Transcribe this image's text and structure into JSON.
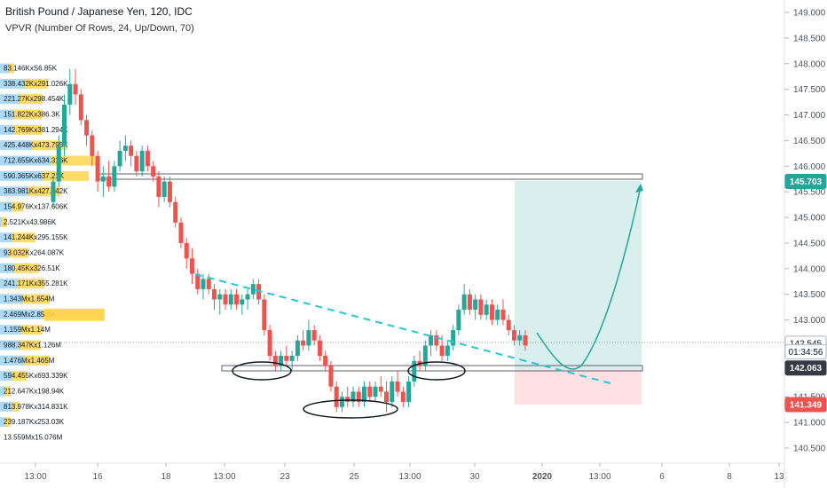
{
  "header": {
    "title": "British Pound / Japanese Yen, 120, IDC",
    "indicator": "VPVR (Number Of Rows, 24, Up/Down, 70)"
  },
  "colors": {
    "up": "#26a69a",
    "down": "#ef5350",
    "vp_up": "#9ed3f5",
    "vp_down": "#ffd54f",
    "target_zone": "#b2dfdb",
    "stop_zone": "#ffcdd2",
    "trendline": "#26c6da",
    "tag_blue": "#2962ff",
    "tag_teal": "#26a69a",
    "tag_dark": "#363a45",
    "tag_red": "#ef5350"
  },
  "chart_data": {
    "type": "candlestick",
    "x_tick_labels": [
      "13:00",
      "16",
      "18",
      "13:00",
      "23",
      "25",
      "13:00",
      "30",
      "2020",
      "13:00",
      "6",
      "8",
      "13"
    ],
    "y_tick_labels": [
      "149.000",
      "148.500",
      "148.000",
      "147.500",
      "147.000",
      "146.500",
      "146.000",
      "145.500",
      "145.000",
      "144.500",
      "144.000",
      "143.500",
      "143.000",
      "142.500",
      "142.000",
      "141.500",
      "141.000",
      "140.500"
    ],
    "ylim": [
      140.3,
      149.1
    ],
    "price_tags": [
      {
        "value": 145.703,
        "label": "145.703",
        "color": "tag_teal"
      },
      {
        "value": 142.545,
        "label": "142.545",
        "color": "tag_white"
      },
      {
        "value": 142.38,
        "label": "01:34:56",
        "color": "tag_white"
      },
      {
        "value": 142.063,
        "label": "142.063",
        "color": "tag_dark"
      },
      {
        "value": 141.349,
        "label": "141.349",
        "color": "tag_red"
      }
    ],
    "volume_profile": [
      {
        "price": 147.9,
        "label": "83.146KxS6.85K",
        "up": 10,
        "down": 6
      },
      {
        "price": 147.6,
        "label": "338.432Kx291.026K",
        "up": 28,
        "down": 26
      },
      {
        "price": 147.3,
        "label": "221.27Kx298.454K",
        "up": 22,
        "down": 26
      },
      {
        "price": 147.0,
        "label": "151.822Kx386.3K",
        "up": 16,
        "down": 32
      },
      {
        "price": 146.7,
        "label": "142.769Kx381.294K",
        "up": 15,
        "down": 32
      },
      {
        "price": 146.4,
        "label": "425.448Kx473.795K",
        "up": 36,
        "down": 40
      },
      {
        "price": 146.1,
        "label": "712.655Kx634.316K",
        "up": 58,
        "down": 52
      },
      {
        "price": 145.8,
        "label": "590.365Kx637.21K",
        "up": 48,
        "down": 52
      },
      {
        "price": 145.5,
        "label": "383.981Kx427.442K",
        "up": 32,
        "down": 36
      },
      {
        "price": 145.2,
        "label": "154.976Kx137.606K",
        "up": 14,
        "down": 12
      },
      {
        "price": 144.9,
        "label": "2.521Kx43.986K",
        "up": 2,
        "down": 6
      },
      {
        "price": 144.6,
        "label": "141.244Kx295.155K",
        "up": 14,
        "down": 26
      },
      {
        "price": 144.3,
        "label": "93.032Kx264.087K",
        "up": 10,
        "down": 22
      },
      {
        "price": 144.0,
        "label": "180.45Kx326.51K",
        "up": 16,
        "down": 28
      },
      {
        "price": 143.7,
        "label": "241.171Kx355.281K",
        "up": 20,
        "down": 30
      },
      {
        "price": 143.4,
        "label": "1.343Mx1.654M",
        "up": 26,
        "down": 30
      },
      {
        "price": 143.1,
        "label": "2.469Mx2.854M",
        "up": 48,
        "down": 68
      },
      {
        "price": 142.8,
        "label": "1.159Mx1.14M",
        "up": 24,
        "down": 24
      },
      {
        "price": 142.5,
        "label": "988.347Kx1.126M",
        "up": 22,
        "down": 24
      },
      {
        "price": 142.2,
        "label": "1.476Mx1.465M",
        "up": 28,
        "down": 28
      },
      {
        "price": 141.9,
        "label": "594.455Kx693.339K",
        "up": 14,
        "down": 16
      },
      {
        "price": 141.6,
        "label": "212.647Kx198.94K",
        "up": 6,
        "down": 6
      },
      {
        "price": 141.3,
        "label": "813.978Kx314.831K",
        "up": 14,
        "down": 8
      },
      {
        "price": 141.0,
        "label": "239.187Kx253.03K",
        "up": 6,
        "down": 6
      },
      {
        "price": 140.7,
        "label": "13.559Mx15.076M",
        "up": 0,
        "down": 0
      }
    ],
    "candles": [
      [
        145.3,
        145.8,
        145.2,
        145.7
      ],
      [
        145.7,
        146.6,
        145.6,
        146.4
      ],
      [
        146.4,
        147.4,
        146.2,
        147.2
      ],
      [
        147.2,
        147.9,
        147.0,
        147.6
      ],
      [
        147.6,
        147.9,
        147.2,
        147.4
      ],
      [
        147.4,
        147.5,
        146.8,
        146.9
      ],
      [
        146.9,
        147.0,
        146.4,
        146.6
      ],
      [
        146.6,
        146.7,
        146.0,
        146.2
      ],
      [
        146.2,
        146.3,
        145.5,
        145.7
      ],
      [
        145.7,
        146.0,
        145.4,
        145.8
      ],
      [
        145.8,
        146.1,
        145.5,
        145.6
      ],
      [
        145.6,
        146.1,
        145.5,
        146.0
      ],
      [
        146.0,
        146.5,
        145.9,
        146.3
      ],
      [
        146.3,
        146.6,
        146.1,
        146.4
      ],
      [
        146.4,
        146.5,
        146.0,
        146.2
      ],
      [
        146.2,
        146.3,
        145.8,
        145.9
      ],
      [
        145.9,
        146.4,
        145.8,
        146.3
      ],
      [
        146.3,
        146.4,
        145.9,
        146.0
      ],
      [
        146.0,
        146.1,
        145.7,
        145.8
      ],
      [
        145.8,
        145.9,
        145.2,
        145.4
      ],
      [
        145.4,
        145.8,
        145.3,
        145.7
      ],
      [
        145.7,
        145.8,
        145.2,
        145.3
      ],
      [
        145.3,
        145.4,
        144.8,
        144.9
      ],
      [
        144.9,
        145.0,
        144.4,
        144.5
      ],
      [
        144.5,
        144.6,
        144.0,
        144.2
      ],
      [
        144.2,
        144.4,
        143.7,
        143.9
      ],
      [
        143.9,
        144.0,
        143.5,
        143.6
      ],
      [
        143.6,
        143.9,
        143.4,
        143.8
      ],
      [
        143.8,
        143.9,
        143.5,
        143.6
      ],
      [
        143.6,
        143.7,
        143.2,
        143.4
      ],
      [
        143.4,
        143.6,
        143.1,
        143.5
      ],
      [
        143.5,
        143.6,
        143.2,
        143.3
      ],
      [
        143.3,
        143.6,
        143.2,
        143.5
      ],
      [
        143.5,
        143.6,
        143.2,
        143.3
      ],
      [
        143.3,
        143.5,
        143.1,
        143.4
      ],
      [
        143.4,
        143.6,
        143.2,
        143.5
      ],
      [
        143.5,
        143.8,
        143.4,
        143.7
      ],
      [
        143.7,
        143.8,
        143.3,
        143.4
      ],
      [
        143.4,
        143.5,
        142.7,
        142.8
      ],
      [
        142.8,
        142.9,
        142.2,
        142.3
      ],
      [
        142.3,
        142.4,
        142.0,
        142.1
      ],
      [
        142.1,
        142.4,
        142.0,
        142.3
      ],
      [
        142.3,
        142.5,
        142.1,
        142.2
      ],
      [
        142.2,
        142.4,
        142.0,
        142.3
      ],
      [
        142.3,
        142.7,
        142.2,
        142.6
      ],
      [
        142.6,
        142.8,
        142.4,
        142.5
      ],
      [
        142.5,
        143.0,
        142.4,
        142.8
      ],
      [
        142.8,
        142.9,
        142.5,
        142.6
      ],
      [
        142.6,
        142.7,
        142.2,
        142.3
      ],
      [
        142.3,
        142.4,
        142.0,
        142.1
      ],
      [
        142.1,
        142.2,
        141.6,
        141.7
      ],
      [
        141.7,
        141.8,
        141.2,
        141.3
      ],
      [
        141.3,
        141.6,
        141.2,
        141.5
      ],
      [
        141.5,
        141.7,
        141.3,
        141.4
      ],
      [
        141.4,
        141.7,
        141.3,
        141.6
      ],
      [
        141.6,
        141.7,
        141.3,
        141.4
      ],
      [
        141.4,
        141.8,
        141.3,
        141.7
      ],
      [
        141.7,
        141.8,
        141.4,
        141.5
      ],
      [
        141.5,
        141.8,
        141.4,
        141.7
      ],
      [
        141.7,
        141.9,
        141.5,
        141.6
      ],
      [
        141.6,
        141.8,
        141.2,
        141.4
      ],
      [
        141.4,
        141.9,
        141.3,
        141.8
      ],
      [
        141.8,
        142.0,
        141.5,
        141.6
      ],
      [
        141.6,
        141.7,
        141.3,
        141.4
      ],
      [
        141.4,
        141.9,
        141.3,
        141.8
      ],
      [
        141.8,
        142.3,
        141.7,
        142.2
      ],
      [
        142.2,
        142.4,
        142.0,
        142.1
      ],
      [
        142.1,
        142.6,
        142.0,
        142.5
      ],
      [
        142.5,
        142.8,
        142.3,
        142.7
      ],
      [
        142.7,
        142.8,
        142.4,
        142.5
      ],
      [
        142.5,
        142.7,
        142.2,
        142.3
      ],
      [
        142.3,
        142.6,
        142.2,
        142.5
      ],
      [
        142.5,
        142.9,
        142.4,
        142.8
      ],
      [
        142.8,
        143.3,
        142.7,
        143.2
      ],
      [
        143.2,
        143.7,
        143.1,
        143.5
      ],
      [
        143.5,
        143.6,
        143.1,
        143.2
      ],
      [
        143.2,
        143.5,
        143.0,
        143.4
      ],
      [
        143.4,
        143.5,
        143.0,
        143.1
      ],
      [
        143.1,
        143.4,
        143.0,
        143.3
      ],
      [
        143.3,
        143.4,
        142.9,
        143.0
      ],
      [
        143.0,
        143.3,
        142.9,
        143.2
      ],
      [
        143.2,
        143.4,
        142.9,
        143.0
      ],
      [
        143.0,
        143.1,
        142.7,
        142.8
      ],
      [
        142.8,
        142.9,
        142.5,
        142.6
      ],
      [
        142.6,
        142.8,
        142.5,
        142.7
      ],
      [
        142.7,
        142.8,
        142.4,
        142.5
      ]
    ]
  }
}
